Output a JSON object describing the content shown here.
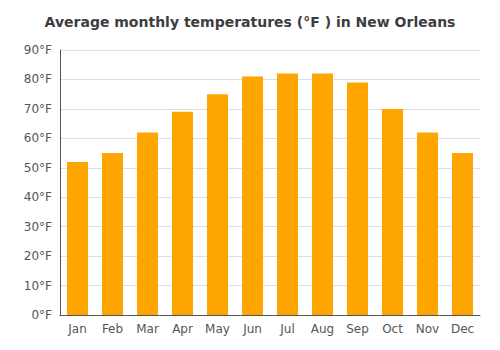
{
  "chart_data": {
    "type": "bar",
    "title": "Average monthly temperatures (°F ) in New Orleans",
    "categories": [
      "Jan",
      "Feb",
      "Mar",
      "Apr",
      "May",
      "Jun",
      "Jul",
      "Aug",
      "Sep",
      "Oct",
      "Nov",
      "Dec"
    ],
    "values": [
      52,
      55,
      62,
      69,
      75,
      81,
      82,
      82,
      79,
      70,
      62,
      55
    ],
    "color": "#FFA500",
    "ylim": [
      0,
      90
    ],
    "yticks": [
      {
        "value": 0,
        "label": "0°F"
      },
      {
        "value": 10,
        "label": "10°F"
      },
      {
        "value": 20,
        "label": "20°F"
      },
      {
        "value": 30,
        "label": "30°F"
      },
      {
        "value": 40,
        "label": "40°F"
      },
      {
        "value": 50,
        "label": "50°F"
      },
      {
        "value": 60,
        "label": "60°F"
      },
      {
        "value": 70,
        "label": "70°F"
      },
      {
        "value": 80,
        "label": "80°F"
      },
      {
        "value": 90,
        "label": "90°F"
      }
    ],
    "grid": true
  }
}
